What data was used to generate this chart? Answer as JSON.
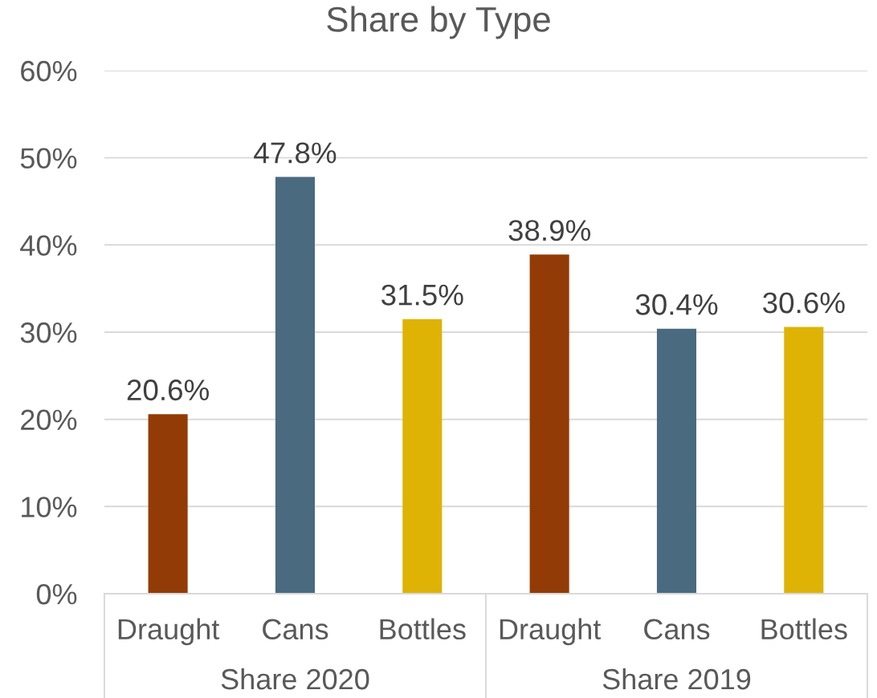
{
  "chart_data": {
    "type": "bar",
    "title": "Share by Type",
    "categories": [
      "Draught",
      "Cans",
      "Bottles",
      "Draught",
      "Cans",
      "Bottles"
    ],
    "values": [
      20.6,
      47.8,
      31.5,
      38.9,
      30.4,
      30.6
    ],
    "colors": [
      "#933b06",
      "#4a6a80",
      "#deb306",
      "#933b06",
      "#4a6a80",
      "#deb306"
    ],
    "value_labels": [
      "20.6%",
      "47.8%",
      "31.5%",
      "38.9%",
      "30.4%",
      "30.6%"
    ],
    "ylim": [
      0,
      60
    ],
    "yticks": [
      {
        "value": 0,
        "label": "0%"
      },
      {
        "value": 10,
        "label": "10%"
      },
      {
        "value": 20,
        "label": "20%"
      },
      {
        "value": 30,
        "label": "30%"
      },
      {
        "value": 40,
        "label": "40%"
      },
      {
        "value": 50,
        "label": "50%"
      },
      {
        "value": 60,
        "label": "60%"
      }
    ],
    "grid": "y",
    "annotations": [
      "Share 2020",
      "Share 2019"
    ]
  }
}
